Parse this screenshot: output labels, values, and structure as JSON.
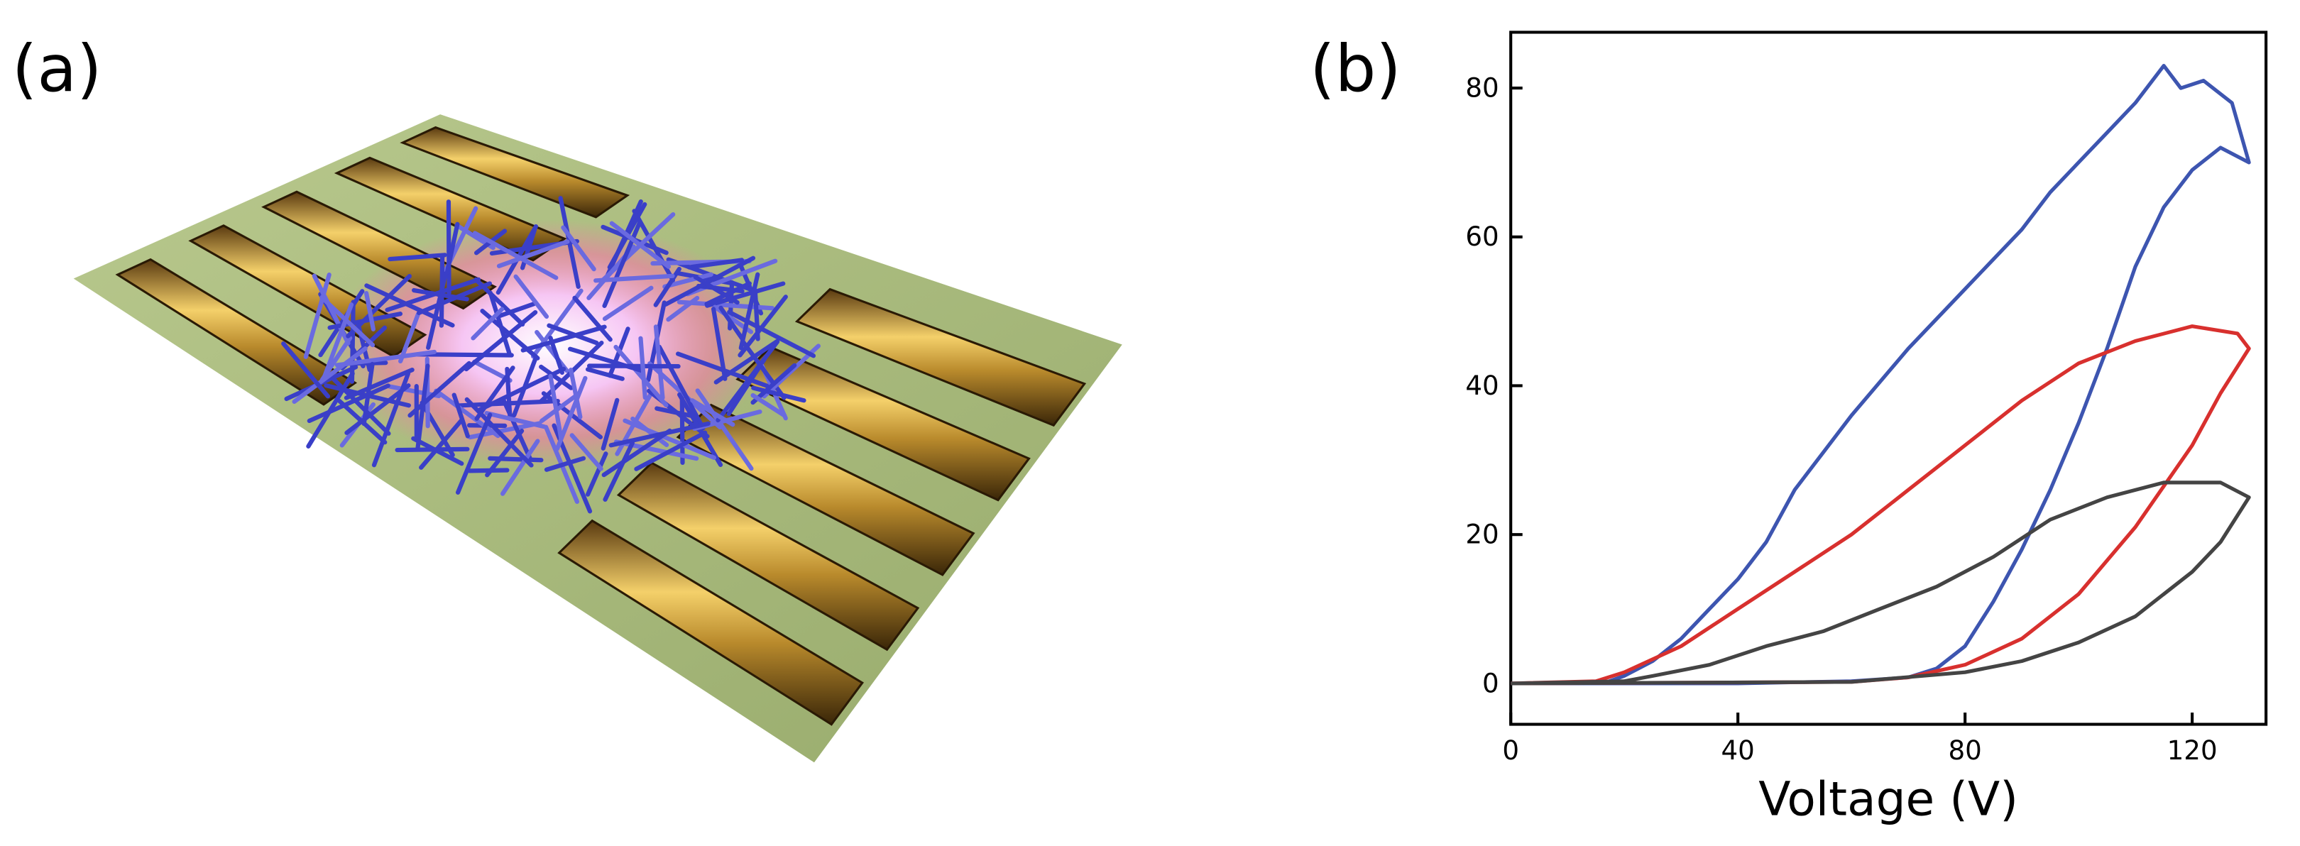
{
  "panel_labels": [
    "(a)",
    "(b)"
  ],
  "chart_data": {
    "type": "line",
    "xlabel": "Voltage (V)",
    "xlim": [
      0,
      133
    ],
    "ylim": [
      -5.5,
      87.5
    ],
    "xticks": [
      0,
      40,
      80,
      120
    ],
    "yticks": [
      0,
      20,
      40,
      60,
      80
    ],
    "series": [
      {
        "name": "Blue loop",
        "color": "#3d55b0",
        "x": [
          0,
          20,
          40,
          60,
          70,
          75,
          80,
          85,
          90,
          95,
          100,
          105,
          110,
          115,
          120,
          125,
          130,
          127,
          122,
          118,
          115,
          110,
          105,
          100,
          95,
          90,
          80,
          70,
          60,
          50,
          45,
          40,
          35,
          30,
          25,
          20,
          17,
          10,
          0
        ],
        "values": [
          0,
          0,
          0,
          0.3,
          0.8,
          2,
          5,
          11,
          18,
          26,
          35,
          45,
          56,
          64,
          69,
          72,
          70,
          78,
          81,
          80,
          83,
          78,
          74,
          70,
          66,
          61,
          53,
          45,
          36,
          26,
          19,
          14,
          10,
          6,
          3,
          1,
          0.2,
          0,
          0
        ]
      },
      {
        "name": "Red loop",
        "color": "#d8302e",
        "x": [
          0,
          60,
          70,
          80,
          90,
          100,
          110,
          120,
          125,
          130,
          128,
          120,
          110,
          100,
          90,
          80,
          70,
          60,
          50,
          40,
          30,
          20,
          15,
          0
        ],
        "values": [
          0,
          0.2,
          0.8,
          2.5,
          6,
          12,
          21,
          32,
          39,
          45,
          47,
          48,
          46,
          43,
          38,
          32,
          26,
          20,
          15,
          10,
          5,
          1.5,
          0.3,
          0
        ]
      },
      {
        "name": "Black loop",
        "color": "#444444",
        "x": [
          0,
          60,
          80,
          90,
          100,
          110,
          120,
          125,
          130,
          125,
          115,
          105,
          95,
          85,
          75,
          65,
          55,
          45,
          35,
          25,
          20,
          0
        ],
        "values": [
          0,
          0.2,
          1.5,
          3,
          5.5,
          9,
          15,
          19,
          25,
          27,
          27,
          25,
          22,
          17,
          13,
          10,
          7,
          5,
          2.5,
          1,
          0.3,
          0
        ]
      }
    ]
  }
}
